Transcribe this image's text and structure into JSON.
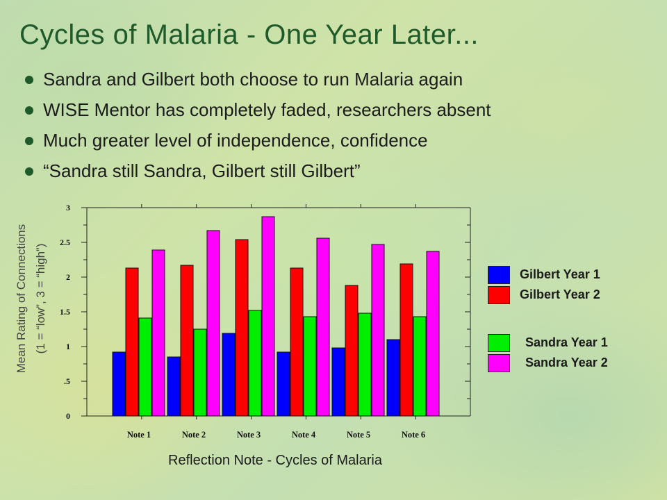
{
  "slide": {
    "title": "Cycles of Malaria - One Year Later...",
    "bullets": [
      "Sandra and Gilbert both choose to run Malaria again",
      "WISE Mentor has completely faded, researchers absent",
      "Much greater level of independence, confidence",
      "“Sandra still Sandra, Gilbert still Gilbert”"
    ]
  },
  "chart_data": {
    "type": "bar",
    "categories": [
      "Note 1",
      "Note 2",
      "Note 3",
      "Note 4",
      "Note 5",
      "Note 6"
    ],
    "series": [
      {
        "name": "Gilbert Year 1",
        "color": "#0000ff",
        "values": [
          0.92,
          0.85,
          1.19,
          0.92,
          0.98,
          1.1
        ]
      },
      {
        "name": "Gilbert Year 2",
        "color": "#ff0000",
        "values": [
          2.13,
          2.17,
          2.54,
          2.13,
          1.88,
          2.19
        ]
      },
      {
        "name": "Sandra Year 1",
        "color": "#00ee00",
        "values": [
          1.41,
          1.25,
          1.52,
          1.43,
          1.48,
          1.43
        ]
      },
      {
        "name": "Sandra Year 2",
        "color": "#ff00ff",
        "values": [
          2.39,
          2.67,
          2.87,
          2.56,
          2.47,
          2.37
        ]
      }
    ],
    "xlabel": "Reflection Note - Cycles of Malaria",
    "ylabel": [
      "Mean Rating of Connections",
      "(1 = “low”, 3 = “high”)"
    ],
    "ylim": [
      0,
      3
    ],
    "yticks": [
      "0",
      ".5",
      "1",
      "1.5",
      "2",
      "2.5",
      "3"
    ],
    "legend_groups": [
      [
        0,
        1
      ],
      [
        2,
        3
      ]
    ],
    "legend_position": "right",
    "grid": false
  }
}
